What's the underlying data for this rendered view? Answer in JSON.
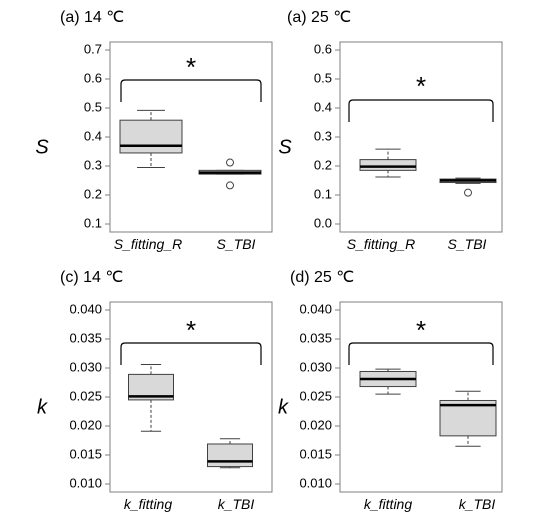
{
  "chart_data": [
    {
      "type": "boxplot",
      "title": "(a) 14 ℃",
      "ylabel": "S",
      "ylim": [
        0.1,
        0.7
      ],
      "yticks": [
        "0.1",
        "0.2",
        "0.3",
        "0.4",
        "0.5",
        "0.6",
        "0.7"
      ],
      "significance": "*",
      "categories": [
        "S_fitting_R",
        "S_TBI"
      ],
      "boxes": [
        {
          "whisker_low": 0.295,
          "q1": 0.345,
          "median": 0.37,
          "q3": 0.458,
          "whisker_high": 0.492,
          "outliers": []
        },
        {
          "whisker_low": 0.272,
          "q1": 0.272,
          "median": 0.277,
          "q3": 0.285,
          "whisker_high": 0.285,
          "outliers": [
            0.312,
            0.233
          ]
        }
      ]
    },
    {
      "type": "boxplot",
      "title": "(a) 25 ℃",
      "ylabel": "S",
      "ylim": [
        0.0,
        0.6
      ],
      "yticks": [
        "0.0",
        "0.1",
        "0.2",
        "0.3",
        "0.4",
        "0.5",
        "0.6"
      ],
      "significance": "*",
      "categories": [
        "S_fitting_R",
        "S_TBI"
      ],
      "boxes": [
        {
          "whisker_low": 0.162,
          "q1": 0.185,
          "median": 0.198,
          "q3": 0.222,
          "whisker_high": 0.258,
          "outliers": []
        },
        {
          "whisker_low": 0.14,
          "q1": 0.143,
          "median": 0.15,
          "q3": 0.155,
          "whisker_high": 0.158,
          "outliers": [
            0.108
          ]
        }
      ]
    },
    {
      "type": "boxplot",
      "title": "(c) 14 ℃",
      "ylabel": "k",
      "ylim": [
        0.01,
        0.04
      ],
      "yticks": [
        "0.010",
        "0.015",
        "0.020",
        "0.025",
        "0.030",
        "0.035",
        "0.040"
      ],
      "significance": "*",
      "categories": [
        "k_fitting",
        "k_TBI"
      ],
      "boxes": [
        {
          "whisker_low": 0.0191,
          "q1": 0.0245,
          "median": 0.0251,
          "q3": 0.0289,
          "whisker_high": 0.0306,
          "outliers": []
        },
        {
          "whisker_low": 0.0128,
          "q1": 0.013,
          "median": 0.0139,
          "q3": 0.0169,
          "whisker_high": 0.0178,
          "outliers": []
        }
      ]
    },
    {
      "type": "boxplot",
      "title": "(d) 25 ℃",
      "ylabel": "k",
      "ylim": [
        0.01,
        0.04
      ],
      "yticks": [
        "0.010",
        "0.015",
        "0.020",
        "0.025",
        "0.030",
        "0.035",
        "0.040"
      ],
      "significance": "*",
      "categories": [
        "k_fitting",
        "k_TBI"
      ],
      "boxes": [
        {
          "whisker_low": 0.0255,
          "q1": 0.0268,
          "median": 0.0281,
          "q3": 0.0294,
          "whisker_high": 0.0298,
          "outliers": []
        },
        {
          "whisker_low": 0.0165,
          "q1": 0.0183,
          "median": 0.0236,
          "q3": 0.0244,
          "whisker_high": 0.026,
          "outliers": []
        }
      ]
    }
  ],
  "style": {
    "box_fill": "#d9d9d9",
    "box_stroke": "#404040",
    "median_color": "#000000",
    "axis_color": "#7f7f7f"
  }
}
